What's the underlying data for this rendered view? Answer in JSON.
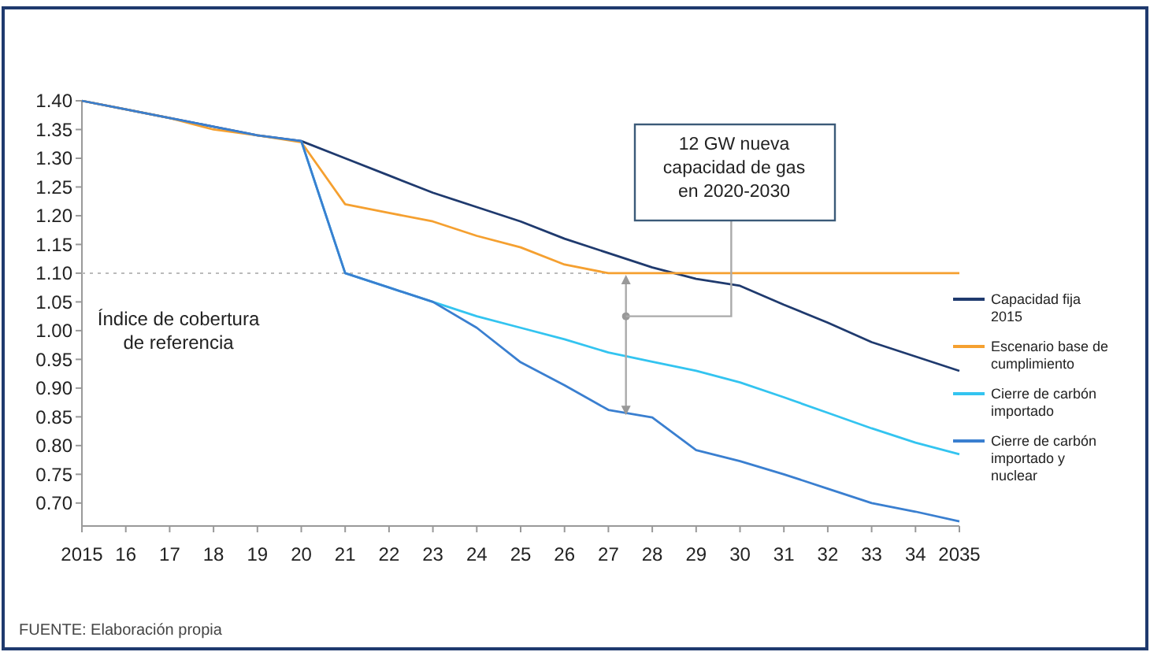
{
  "chart_data": {
    "type": "line",
    "x": [
      2015,
      2016,
      2017,
      2018,
      2019,
      2020,
      2021,
      2022,
      2023,
      2024,
      2025,
      2026,
      2027,
      2028,
      2029,
      2030,
      2031,
      2032,
      2033,
      2034,
      2035
    ],
    "series": [
      {
        "name": "Capacidad fija 2015",
        "color": "#1f3a6e",
        "values": [
          1.4,
          1.385,
          1.37,
          1.355,
          1.34,
          1.33,
          1.3,
          1.27,
          1.24,
          1.215,
          1.19,
          1.16,
          1.135,
          1.11,
          1.09,
          1.078,
          1.045,
          1.014,
          0.98,
          0.955,
          0.93
        ]
      },
      {
        "name": "Escenario base de cumplimiento",
        "color": "#f5a030",
        "values": [
          1.4,
          1.385,
          1.37,
          1.35,
          1.34,
          1.328,
          1.22,
          1.205,
          1.19,
          1.165,
          1.145,
          1.115,
          1.1,
          1.1,
          1.1,
          1.1,
          1.1,
          1.1,
          1.1,
          1.1,
          1.1
        ]
      },
      {
        "name": "Cierre de carbón importado",
        "color": "#33c4f0",
        "values": [
          null,
          null,
          null,
          null,
          null,
          1.33,
          1.1,
          1.075,
          1.05,
          1.025,
          1.005,
          0.985,
          0.962,
          0.946,
          0.93,
          0.91,
          0.884,
          0.857,
          0.83,
          0.805,
          0.785
        ]
      },
      {
        "name": "Cierre de carbón importado y nuclear",
        "color": "#3a7fd0",
        "values": [
          1.4,
          1.385,
          1.37,
          1.355,
          1.34,
          1.33,
          1.1,
          1.075,
          1.05,
          1.005,
          0.945,
          0.905,
          0.862,
          0.849,
          0.792,
          0.773,
          0.75,
          0.725,
          0.7,
          0.685,
          0.668
        ]
      }
    ],
    "xlim": [
      2015,
      2035
    ],
    "xticks": [
      2015,
      {
        "value": 2016,
        "label": "16"
      },
      {
        "value": 2017,
        "label": "17"
      },
      {
        "value": 2018,
        "label": "18"
      },
      {
        "value": 2019,
        "label": "19"
      },
      {
        "value": 2020,
        "label": "20"
      },
      {
        "value": 2021,
        "label": "21"
      },
      {
        "value": 2022,
        "label": "22"
      },
      {
        "value": 2023,
        "label": "23"
      },
      {
        "value": 2024,
        "label": "24"
      },
      {
        "value": 2025,
        "label": "25"
      },
      {
        "value": 2026,
        "label": "26"
      },
      {
        "value": 2027,
        "label": "27"
      },
      {
        "value": 2028,
        "label": "28"
      },
      {
        "value": 2029,
        "label": "29"
      },
      {
        "value": 2030,
        "label": "30"
      },
      {
        "value": 2031,
        "label": "31"
      },
      {
        "value": 2032,
        "label": "32"
      },
      {
        "value": 2033,
        "label": "33"
      },
      {
        "value": 2034,
        "label": "34"
      },
      2035
    ],
    "ylim": [
      0.66,
      1.4
    ],
    "yticks": [
      {
        "value": 0.7,
        "label": "0.70"
      },
      {
        "value": 0.75,
        "label": "0.75"
      },
      {
        "value": 0.8,
        "label": "0.80"
      },
      {
        "value": 0.85,
        "label": "0.85"
      },
      {
        "value": 0.9,
        "label": "0.90"
      },
      {
        "value": 0.95,
        "label": "0.95"
      },
      {
        "value": 1.0,
        "label": "1.00"
      },
      {
        "value": 1.05,
        "label": "1.05"
      },
      {
        "value": 1.1,
        "label": "1.10"
      },
      {
        "value": 1.15,
        "label": "1.15"
      },
      {
        "value": 1.2,
        "label": "1.20"
      },
      {
        "value": 1.25,
        "label": "1.25"
      },
      {
        "value": 1.3,
        "label": "1.30"
      },
      {
        "value": 1.35,
        "label": "1.35"
      },
      {
        "value": 1.4,
        "label": "1.40"
      }
    ],
    "ref_lines": [
      {
        "axis": "y",
        "value": 1.1,
        "label": "Índice de cobertura de referencia",
        "color": "#bbbbbb",
        "line_style": "dotted"
      }
    ],
    "annotations": [
      "12 GW nueva capacidad de gas en 2020-2030",
      "FUENTE: Elaboración propia"
    ],
    "legend": "right",
    "grid": false,
    "marker": "none",
    "line_style": "solid"
  }
}
